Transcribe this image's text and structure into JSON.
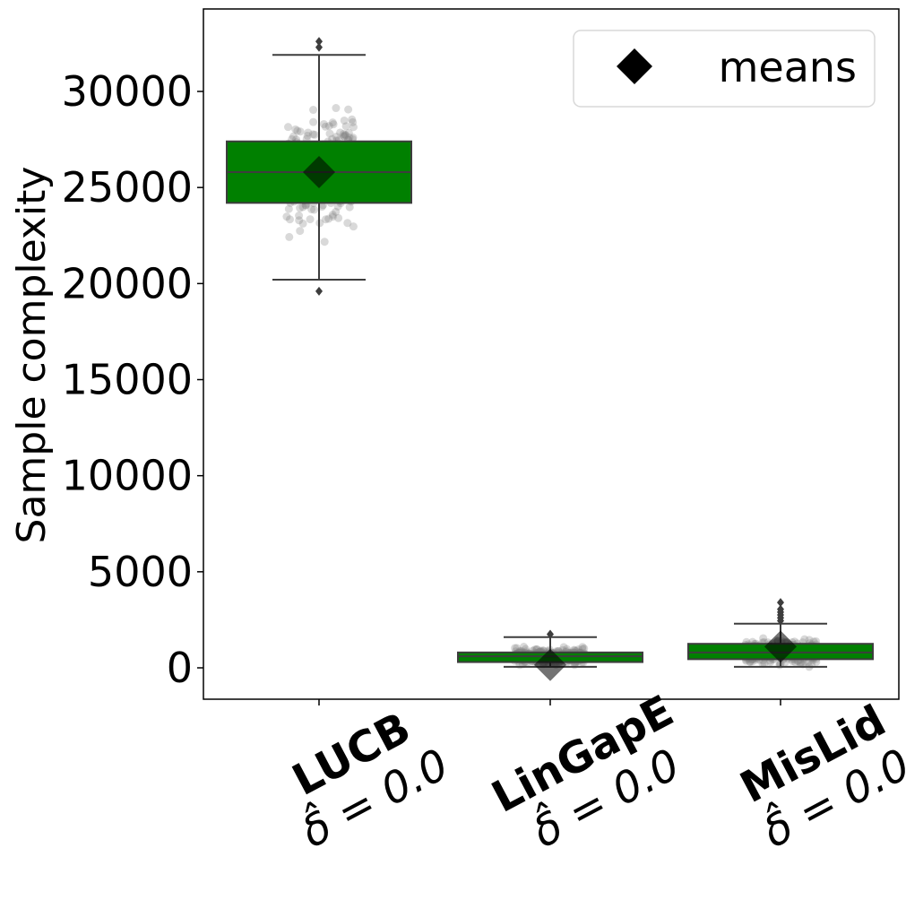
{
  "chart_data": {
    "type": "box",
    "ylabel": "Sample complexity",
    "ylim": [
      -1600,
      34300
    ],
    "yticks": [
      0,
      5000,
      10000,
      15000,
      20000,
      25000,
      30000
    ],
    "legend": {
      "label": "means",
      "marker": "diamond",
      "position": "top-right"
    },
    "colors": {
      "box": "#008000",
      "line": "#3d3d3d",
      "points": "#808080",
      "mean": "#000000"
    },
    "categories": [
      {
        "name": "LUCB",
        "sub": "δ̂ = 0.0",
        "whisker_low": 20200,
        "q1": 24200,
        "median": 25800,
        "q3": 27400,
        "whisker_high": 31900,
        "mean": 25800,
        "outliers": [
          19600,
          32300,
          32600
        ]
      },
      {
        "name": "LinGapE",
        "sub": "δ̂ = 0.0",
        "whisker_low": 50,
        "q1": 300,
        "median": 600,
        "q3": 800,
        "whisker_high": 1600,
        "mean": 150,
        "outliers": [
          1750
        ]
      },
      {
        "name": "MisLid",
        "sub": "δ̂ = 0.0",
        "whisker_low": 50,
        "q1": 450,
        "median": 800,
        "q3": 1250,
        "whisker_high": 2300,
        "mean": 1100,
        "outliers": [
          2450,
          2600,
          2750,
          2900,
          3050,
          3400
        ]
      }
    ]
  }
}
